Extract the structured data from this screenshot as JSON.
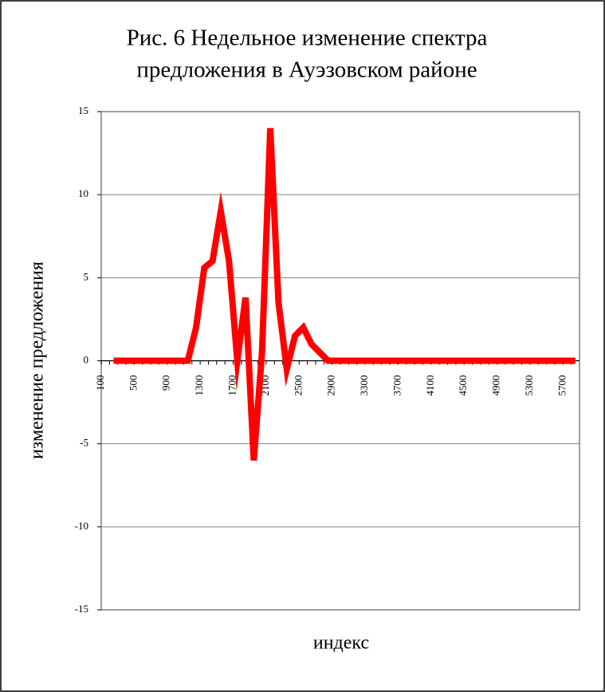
{
  "chart_data": {
    "type": "line",
    "title": [
      "Рис. 6 Недельное изменение спектра",
      "предложения в Ауэзовском районе"
    ],
    "x_label": "индекс",
    "y_label": "изменение предложения",
    "categories": [
      "100",
      null,
      null,
      null,
      "500",
      null,
      null,
      null,
      "900",
      null,
      null,
      null,
      "1300",
      null,
      null,
      null,
      "1700",
      null,
      null,
      null,
      "2100",
      null,
      null,
      null,
      "2500",
      null,
      null,
      null,
      "2900",
      null,
      null,
      null,
      "3300",
      null,
      null,
      null,
      "3700",
      null,
      null,
      null,
      "4100",
      null,
      null,
      null,
      "4500",
      null,
      null,
      null,
      "4900",
      null,
      null,
      null,
      "5300",
      null,
      null,
      null,
      "5700",
      null
    ],
    "series": [
      {
        "name": "изменение предложения",
        "color": "#ff0000",
        "values": [
          null,
          0,
          0,
          0,
          0,
          0,
          0,
          0,
          0,
          0,
          0,
          2,
          5.6,
          6,
          9,
          6,
          0,
          3.8,
          -6,
          0.5,
          14,
          3.5,
          -0.5,
          1.5,
          2,
          1,
          0.5,
          0,
          0,
          0,
          0,
          0,
          0,
          0,
          0,
          0,
          0,
          0,
          0,
          0,
          0,
          0,
          0,
          0,
          0,
          0,
          0,
          0,
          0,
          0,
          0,
          0,
          0,
          0,
          0,
          0,
          0,
          0
        ]
      }
    ],
    "ylim": [
      -15,
      15
    ],
    "yticks": [
      -15,
      -10,
      -5,
      0,
      5,
      10,
      15
    ],
    "grid": true
  }
}
